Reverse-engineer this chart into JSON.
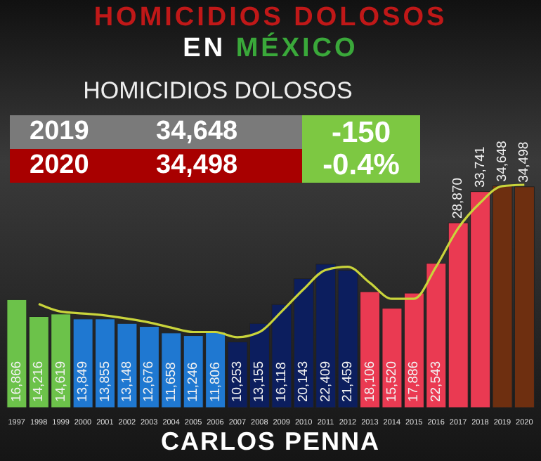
{
  "chart_data": {
    "type": "bar",
    "title": "HOMICIDIOS DOLOSOS",
    "subtitle": "EN MÉXICO",
    "annotations": [
      "HOMICIDIOS DOLOSOS",
      "2019",
      "34,648",
      "2020",
      "34,498",
      "-150",
      "-0.4%",
      "CARLOS PENNA"
    ],
    "categories": [
      "1997",
      "1998",
      "1999",
      "2000",
      "2001",
      "2002",
      "2003",
      "2004",
      "2005",
      "2006",
      "2007",
      "2008",
      "2009",
      "2010",
      "2011",
      "2012",
      "2013",
      "2014",
      "2015",
      "2016",
      "2017",
      "2018",
      "2019",
      "2020"
    ],
    "series": [
      {
        "values": [
          16866,
          14216,
          14619,
          13849,
          13855,
          13148,
          12676,
          11658,
          11246,
          11806,
          10253,
          13155,
          16118,
          20143,
          22409,
          21459,
          18106,
          15520,
          17886,
          22543,
          28870,
          33741,
          34648,
          34498
        ],
        "colors": [
          "#6cc24a",
          "#6cc24a",
          "#6cc24a",
          "#1f78d1",
          "#1f78d1",
          "#1f78d1",
          "#1f78d1",
          "#1f78d1",
          "#1f78d1",
          "#1f78d1",
          "#0c1e5e",
          "#0c1e5e",
          "#0c1e5e",
          "#0c1e5e",
          "#0c1e5e",
          "#0c1e5e",
          "#ea3a52",
          "#ea3a52",
          "#ea3a52",
          "#ea3a52",
          "#ea3a52",
          "#ea3a52",
          "#6e2f10",
          "#6e2f10"
        ],
        "value_labels": [
          "16,866",
          "14,216",
          "14,619",
          "13,849",
          "13,855",
          "13,148",
          "12,676",
          "11,658",
          "11,246",
          "11,806",
          "10,253",
          "13,155",
          "16,118",
          "20,143",
          "22,409",
          "21,459",
          "18,106",
          "15,520",
          "17,886",
          "22,543",
          "28,870",
          "33,741",
          "34,648",
          "34,498"
        ]
      },
      {
        "type": "line",
        "color": "#c9d43b",
        "values": [
          null,
          16200,
          15000,
          14700,
          14400,
          13900,
          13300,
          12500,
          11800,
          11800,
          11000,
          11800,
          15000,
          18500,
          21500,
          22000,
          19500,
          17000,
          17000,
          22000,
          28000,
          32000,
          34600,
          34800
        ]
      }
    ],
    "marker": "none"
  }
}
